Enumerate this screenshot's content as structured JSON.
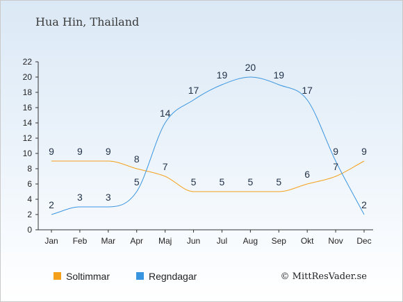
{
  "chart_data": {
    "type": "line",
    "title": "Hua Hin, Thailand",
    "categories": [
      "Jan",
      "Feb",
      "Mar",
      "Apr",
      "Maj",
      "Jun",
      "Jul",
      "Aug",
      "Sep",
      "Okt",
      "Nov",
      "Dec"
    ],
    "series": [
      {
        "name": "Soltimmar",
        "color": "#f5a01a",
        "values": [
          9,
          9,
          9,
          8,
          7,
          5,
          5,
          5,
          5,
          6,
          7,
          9
        ]
      },
      {
        "name": "Regndagar",
        "color": "#3a95e0",
        "values": [
          2,
          3,
          3,
          5,
          14,
          17,
          19,
          20,
          19,
          17,
          9,
          2
        ]
      }
    ],
    "ylim": [
      0,
      22
    ],
    "yticks": [
      0,
      2,
      4,
      6,
      8,
      10,
      12,
      14,
      16,
      18,
      20,
      22
    ],
    "grid": false,
    "legend_placement": "bottom-left"
  },
  "credit": "© MittResVader.se"
}
